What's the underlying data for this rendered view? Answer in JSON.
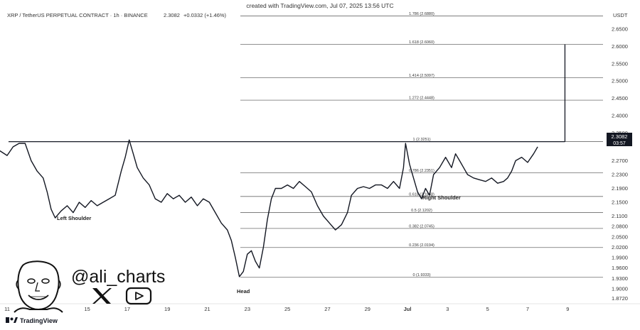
{
  "watermark_top": "created with TradingView.com, Jul 07, 2025 13:56 UTC",
  "header": {
    "symbol_line": "XRP / TetherUS PERPETUAL CONTRACT · 1h · BINANCE",
    "last_price": "2.3082",
    "change": "+0.0332 (+1.46%)"
  },
  "currency_label": "USDT",
  "price_badge": {
    "price": "2.3082",
    "countdown": "03:57"
  },
  "pattern_labels": {
    "left_shoulder": "Left Shoulder",
    "head": "Head",
    "right_shoulder": "Right Shoulder"
  },
  "branding": {
    "handle": "@ali_charts",
    "x_icon": "x-logo-icon",
    "youtube_icon": "youtube-play-icon",
    "avatar_icon": "cartoon-avatar-icon",
    "footer_logo": "TradingView"
  },
  "colors": {
    "line": "#131722",
    "grid": "#6b6b6b",
    "text": "#333333",
    "badge_bg": "#131722",
    "badge_text": "#ffffff"
  },
  "chart_data": {
    "type": "line",
    "title": "XRP / TetherUS PERPETUAL CONTRACT · 1h · BINANCE",
    "y_axis_label": "USDT",
    "ylim": [
      1.855,
      2.697
    ],
    "y_ticks": [
      "2.6500",
      "2.6000",
      "2.5500",
      "2.5000",
      "2.4500",
      "2.4000",
      "2.3500",
      "2.2700",
      "2.2300",
      "2.1900",
      "2.1500",
      "2.1100",
      "2.0800",
      "2.0500",
      "2.0200",
      "1.9900",
      "1.9600",
      "1.9300",
      "1.9000",
      "1.8720"
    ],
    "x_ticks": [
      {
        "label": "11",
        "day": 11
      },
      {
        "label": "15",
        "day": 15
      },
      {
        "label": "17",
        "day": 17
      },
      {
        "label": "19",
        "day": 19
      },
      {
        "label": "21",
        "day": 21
      },
      {
        "label": "23",
        "day": 23
      },
      {
        "label": "25",
        "day": 25
      },
      {
        "label": "27",
        "day": 27
      },
      {
        "label": "29",
        "day": 29
      },
      {
        "label": "Jul",
        "day": 31
      },
      {
        "label": "3",
        "day": 33
      },
      {
        "label": "5",
        "day": 35
      },
      {
        "label": "7",
        "day": 37
      },
      {
        "label": "9",
        "day": 39
      }
    ],
    "xlim": [
      11,
      41
    ],
    "fib_levels": [
      {
        "label": "1.786 (2.6880)",
        "price": 2.688
      },
      {
        "label": "1.618 (2.6060)",
        "price": 2.606
      },
      {
        "label": "1.414 (2.5097)",
        "price": 2.5097
      },
      {
        "label": "1.272 (2.4448)",
        "price": 2.4448
      },
      {
        "label": "1 (2.3251)",
        "price": 2.3251
      },
      {
        "label": "0.786 (2.2351)",
        "price": 2.2351
      },
      {
        "label": "0.618 (2.1668)",
        "price": 2.1668
      },
      {
        "label": "0.5 (2.1202)",
        "price": 2.1202
      },
      {
        "label": "0.382 (2.0745)",
        "price": 2.0745
      },
      {
        "label": "0.236 (2.0194)",
        "price": 2.0194
      },
      {
        "label": "0 (1.9333)",
        "price": 1.9333
      }
    ],
    "neckline": {
      "x0": 11,
      "x1": 37.3,
      "price": 2.325
    },
    "target_line": {
      "x": 37.3,
      "from": 2.325,
      "to": 2.606
    },
    "series": [
      {
        "values": [
          [
            10.6,
            2.3
          ],
          [
            11.0,
            2.285
          ],
          [
            11.3,
            2.31
          ],
          [
            11.6,
            2.32
          ],
          [
            11.9,
            2.32
          ],
          [
            12.2,
            2.27
          ],
          [
            12.5,
            2.24
          ],
          [
            12.8,
            2.22
          ],
          [
            13.0,
            2.18
          ],
          [
            13.2,
            2.13
          ],
          [
            13.4,
            2.105
          ],
          [
            13.7,
            2.125
          ],
          [
            14.0,
            2.14
          ],
          [
            14.3,
            2.12
          ],
          [
            14.6,
            2.15
          ],
          [
            14.9,
            2.135
          ],
          [
            15.2,
            2.155
          ],
          [
            15.5,
            2.14
          ],
          [
            15.8,
            2.15
          ],
          [
            16.1,
            2.16
          ],
          [
            16.4,
            2.17
          ],
          [
            16.7,
            2.24
          ],
          [
            16.9,
            2.28
          ],
          [
            17.1,
            2.33
          ],
          [
            17.3,
            2.29
          ],
          [
            17.5,
            2.25
          ],
          [
            17.8,
            2.22
          ],
          [
            18.1,
            2.2
          ],
          [
            18.4,
            2.16
          ],
          [
            18.7,
            2.15
          ],
          [
            19.0,
            2.175
          ],
          [
            19.3,
            2.16
          ],
          [
            19.6,
            2.17
          ],
          [
            19.9,
            2.15
          ],
          [
            20.2,
            2.165
          ],
          [
            20.5,
            2.14
          ],
          [
            20.8,
            2.16
          ],
          [
            21.1,
            2.15
          ],
          [
            21.4,
            2.12
          ],
          [
            21.7,
            2.09
          ],
          [
            22.0,
            2.07
          ],
          [
            22.2,
            2.04
          ],
          [
            22.4,
            1.99
          ],
          [
            22.6,
            1.935
          ],
          [
            22.8,
            1.95
          ],
          [
            23.0,
            2.0
          ],
          [
            23.2,
            2.01
          ],
          [
            23.4,
            1.98
          ],
          [
            23.6,
            1.96
          ],
          [
            23.8,
            2.02
          ],
          [
            24.0,
            2.1
          ],
          [
            24.2,
            2.16
          ],
          [
            24.4,
            2.19
          ],
          [
            24.7,
            2.19
          ],
          [
            25.0,
            2.2
          ],
          [
            25.3,
            2.19
          ],
          [
            25.6,
            2.21
          ],
          [
            25.9,
            2.195
          ],
          [
            26.2,
            2.18
          ],
          [
            26.5,
            2.14
          ],
          [
            26.8,
            2.11
          ],
          [
            27.1,
            2.09
          ],
          [
            27.4,
            2.07
          ],
          [
            27.7,
            2.085
          ],
          [
            28.0,
            2.12
          ],
          [
            28.2,
            2.17
          ],
          [
            28.5,
            2.19
          ],
          [
            28.8,
            2.195
          ],
          [
            29.1,
            2.19
          ],
          [
            29.4,
            2.2
          ],
          [
            29.7,
            2.2
          ],
          [
            30.0,
            2.19
          ],
          [
            30.3,
            2.21
          ],
          [
            30.6,
            2.19
          ],
          [
            30.8,
            2.25
          ],
          [
            30.9,
            2.32
          ],
          [
            31.1,
            2.26
          ],
          [
            31.3,
            2.22
          ],
          [
            31.5,
            2.18
          ],
          [
            31.7,
            2.16
          ],
          [
            31.9,
            2.19
          ],
          [
            32.1,
            2.17
          ],
          [
            32.3,
            2.23
          ],
          [
            32.6,
            2.25
          ],
          [
            32.9,
            2.28
          ],
          [
            33.2,
            2.25
          ],
          [
            33.4,
            2.29
          ],
          [
            33.6,
            2.27
          ],
          [
            33.8,
            2.25
          ],
          [
            34.0,
            2.23
          ],
          [
            34.3,
            2.22
          ],
          [
            34.6,
            2.215
          ],
          [
            34.9,
            2.21
          ],
          [
            35.2,
            2.22
          ],
          [
            35.5,
            2.205
          ],
          [
            35.8,
            2.21
          ],
          [
            36.0,
            2.22
          ],
          [
            36.2,
            2.24
          ],
          [
            36.4,
            2.27
          ],
          [
            36.7,
            2.28
          ],
          [
            37.0,
            2.265
          ],
          [
            37.3,
            2.29
          ],
          [
            37.5,
            2.31
          ]
        ]
      }
    ]
  }
}
